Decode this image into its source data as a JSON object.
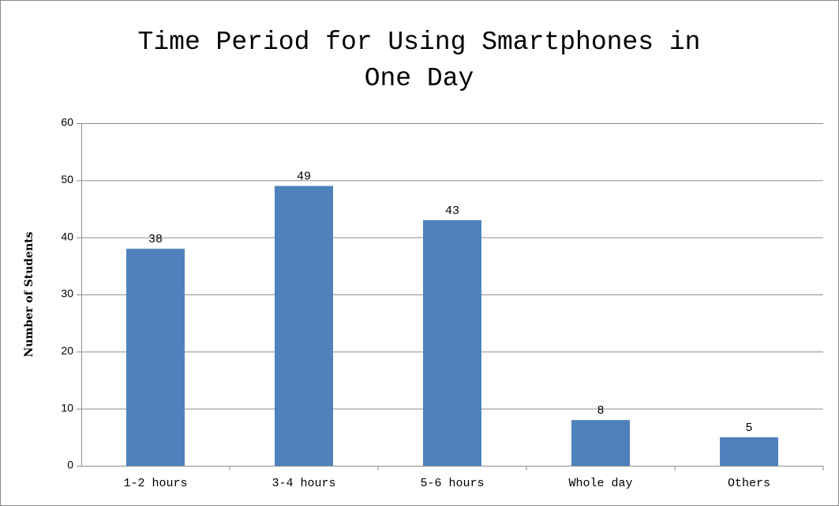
{
  "chart_data": {
    "type": "bar",
    "title": "Time Period for Using Smartphones in One Day",
    "y_label": "Number of Students",
    "categories": [
      "1-2 hours",
      "3-4 hours",
      "5-6 hours",
      "Whole day",
      "Others"
    ],
    "values": [
      38,
      49,
      43,
      8,
      5
    ],
    "color": "#4f81bd",
    "ylim": [
      0,
      60
    ],
    "yticks": [
      0,
      10,
      20,
      30,
      40,
      50,
      60
    ],
    "grid": true
  }
}
